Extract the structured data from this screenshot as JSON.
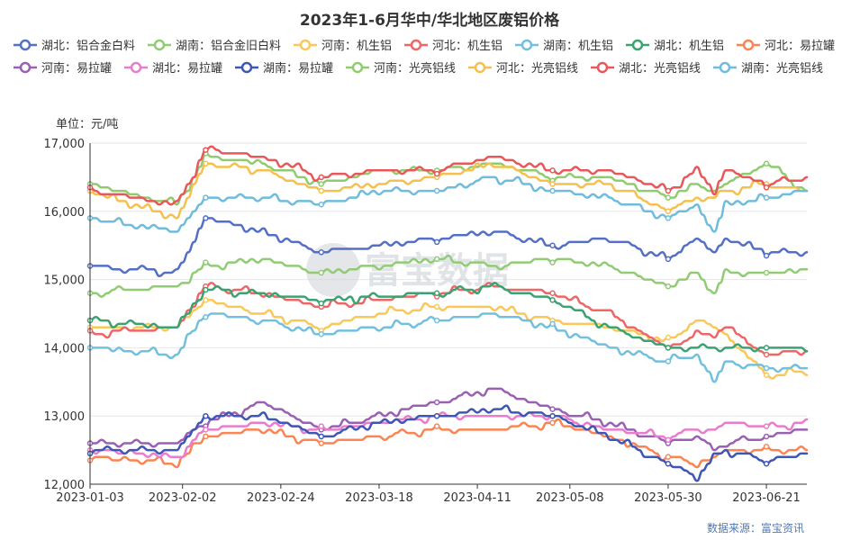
{
  "chart_data": {
    "type": "line",
    "title": "2023年1-6月华中/华北地区废铝价格",
    "unit_label": "单位：元/吨",
    "source": "数据来源：富宝资讯",
    "watermark": "富宝数据",
    "x_ticks": [
      "2023-01-03",
      "2023-02-02",
      "2023-02-24",
      "2023-03-18",
      "2023-04-11",
      "2023-05-08",
      "2023-05-30",
      "2023-06-21"
    ],
    "y_ticks": [
      "12,000",
      "13,000",
      "14,000",
      "15,000",
      "16,000",
      "17,000"
    ],
    "ylim": [
      12000,
      17000
    ],
    "grid": true,
    "legend_position": "top",
    "knots": [
      0,
      15,
      20,
      30,
      40,
      50,
      60,
      70,
      80,
      90,
      100,
      105,
      108,
      110,
      117,
      124
    ],
    "series": [
      {
        "name": "湖北：铝合金白料",
        "color": "#5470c6",
        "values": [
          15200,
          15100,
          15900,
          15700,
          15400,
          15500,
          15600,
          15700,
          15500,
          15600,
          15300,
          15600,
          15400,
          15600,
          15400,
          15400
        ]
      },
      {
        "name": "湖南：铝合金旧白料",
        "color": "#91cc75",
        "values": [
          14800,
          14900,
          15200,
          15300,
          15100,
          15200,
          15300,
          15200,
          15300,
          15200,
          14900,
          15100,
          14800,
          15100,
          15100,
          15150
        ]
      },
      {
        "name": "河南：机生铝",
        "color": "#fac858",
        "values": [
          14300,
          14300,
          14700,
          14500,
          14300,
          14500,
          14600,
          14600,
          14400,
          14300,
          14100,
          14400,
          14300,
          14200,
          13600,
          13650
        ]
      },
      {
        "name": "河北：机生铝",
        "color": "#ee6666",
        "values": [
          14200,
          14300,
          14900,
          14800,
          14600,
          14700,
          14800,
          14900,
          14800,
          14500,
          14000,
          14200,
          14200,
          14300,
          13900,
          13950
        ]
      },
      {
        "name": "湖南：机生铝",
        "color": "#73c0de",
        "values": [
          14000,
          13900,
          14500,
          14400,
          14200,
          14300,
          14400,
          14500,
          14300,
          14000,
          13800,
          13900,
          13500,
          13800,
          13700,
          13700
        ]
      },
      {
        "name": "湖北：机生铝",
        "color": "#3ba272",
        "values": [
          14400,
          14300,
          14850,
          14800,
          14700,
          14750,
          14800,
          14900,
          14700,
          14300,
          14000,
          14000,
          14000,
          14000,
          14000,
          14000
        ]
      },
      {
        "name": "河北：易拉罐",
        "color": "#fc8452",
        "values": [
          12400,
          12300,
          12700,
          12800,
          12600,
          12700,
          12800,
          12800,
          12900,
          12700,
          12400,
          12300,
          12400,
          12500,
          12500,
          12500
        ]
      },
      {
        "name": "河南：易拉罐",
        "color": "#9a60b4",
        "values": [
          12600,
          12600,
          12900,
          13200,
          12800,
          13000,
          13200,
          13400,
          13100,
          12900,
          12600,
          12700,
          12500,
          12600,
          12700,
          12800
        ]
      },
      {
        "name": "湖北：易拉罐",
        "color": "#ea7ccc",
        "values": [
          12500,
          12400,
          12800,
          12900,
          12800,
          12900,
          13000,
          13000,
          13000,
          12800,
          12700,
          12800,
          12800,
          12900,
          12850,
          12900
        ]
      },
      {
        "name": "湖南：易拉罐",
        "color": "#3f57b4",
        "values": [
          12500,
          12500,
          13000,
          13000,
          12700,
          12900,
          13000,
          13100,
          13000,
          12700,
          12300,
          12100,
          12400,
          12500,
          12350,
          12450
        ]
      },
      {
        "name": "河南：光亮铝线",
        "color": "#8fcc6f",
        "values": [
          16400,
          16100,
          16800,
          16700,
          16400,
          16600,
          16600,
          16700,
          16500,
          16500,
          16200,
          16400,
          16300,
          16400,
          16700,
          16300
        ]
      },
      {
        "name": "河北：光亮铝线",
        "color": "#f5c04f",
        "values": [
          16300,
          15900,
          16700,
          16600,
          16300,
          16400,
          16500,
          16700,
          16400,
          16400,
          16000,
          16200,
          16200,
          16300,
          16400,
          16300
        ]
      },
      {
        "name": "湖北：光亮铝线",
        "color": "#e8585a",
        "values": [
          16300,
          16100,
          16900,
          16800,
          16500,
          16600,
          16600,
          16800,
          16600,
          16600,
          16300,
          16600,
          16300,
          16600,
          16400,
          16500
        ]
      },
      {
        "name": "湖南：光亮铝线",
        "color": "#6fbcdc",
        "values": [
          15900,
          15700,
          16200,
          16200,
          16100,
          16300,
          16300,
          16500,
          16300,
          16200,
          15900,
          16100,
          15700,
          16100,
          16200,
          16300
        ]
      }
    ]
  }
}
